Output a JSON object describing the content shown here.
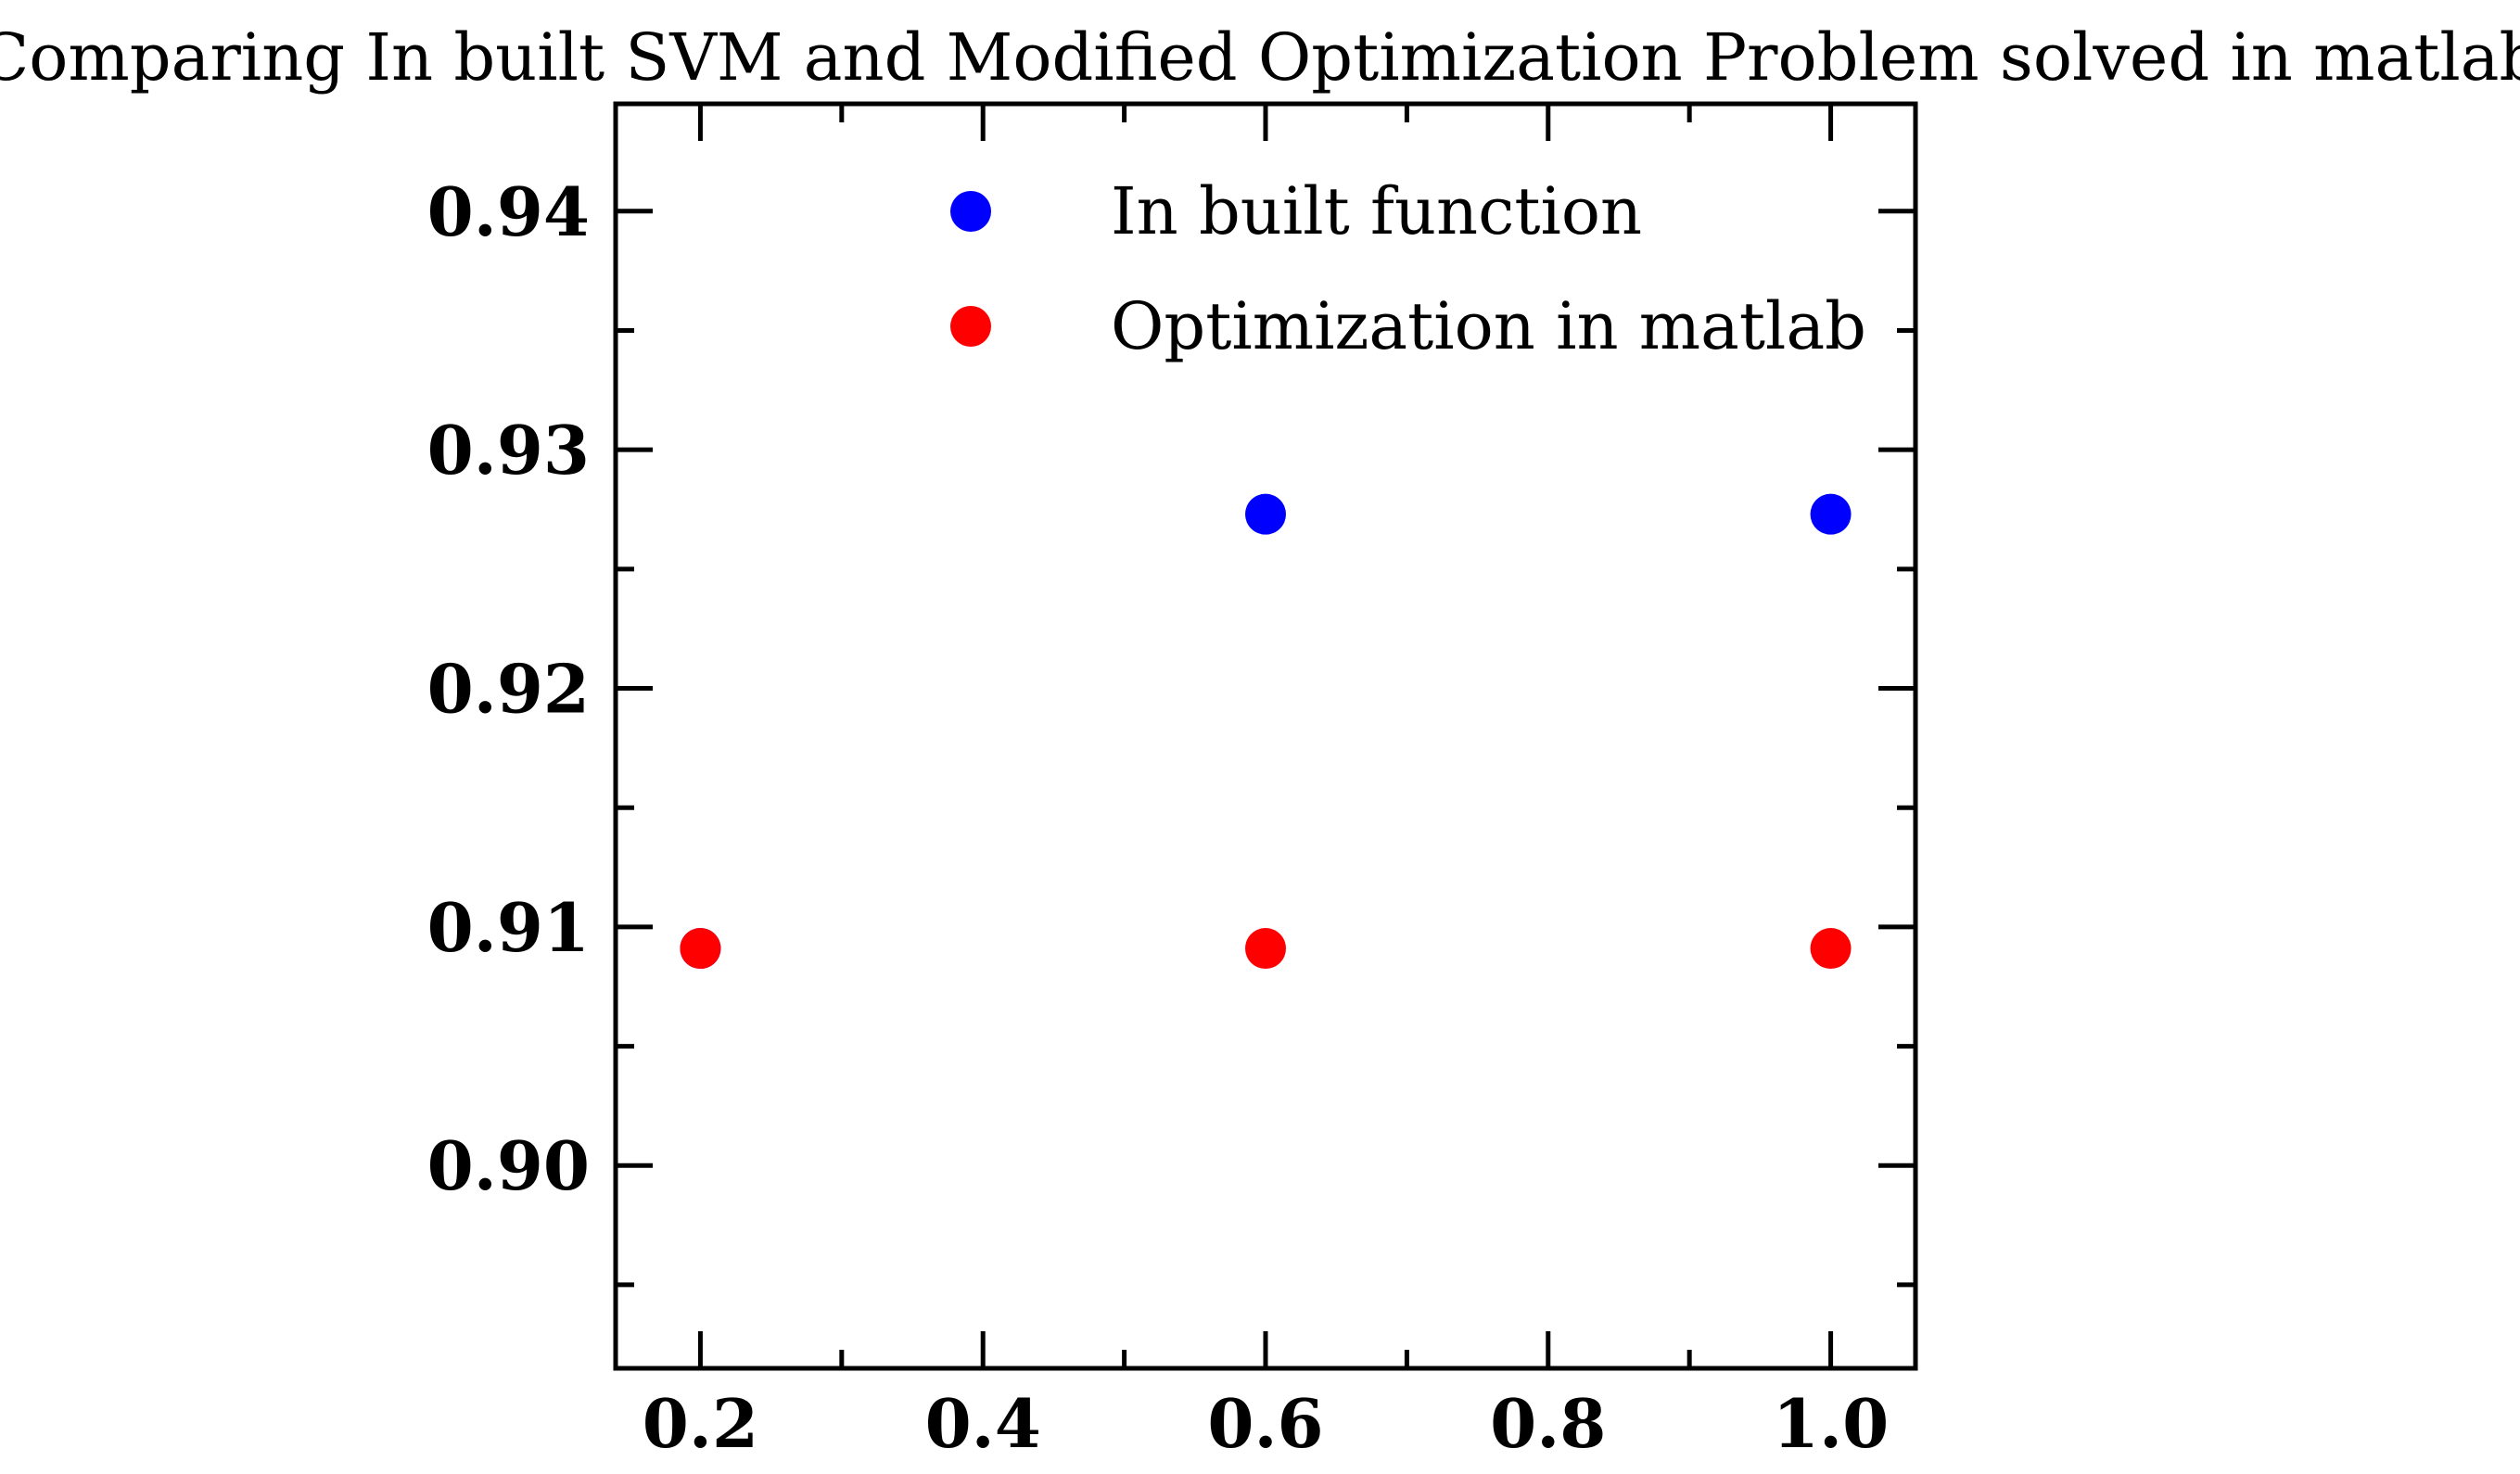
{
  "chart_data": {
    "type": "scatter",
    "title": "Comparing In built SVM and Modified Optimization Problem solved in matlab",
    "xlabel": "",
    "ylabel": "",
    "xlim": [
      0.14,
      1.06
    ],
    "ylim": [
      0.8915,
      0.9445
    ],
    "x_ticks_major": [
      "0.2",
      "0.4",
      "0.6",
      "0.8",
      "1.0"
    ],
    "y_ticks_major": [
      "0.90",
      "0.91",
      "0.92",
      "0.93",
      "0.94"
    ],
    "x_minor_step": 0.1,
    "y_minor_step": 0.005,
    "grid": false,
    "legend_position": "top-center",
    "series": [
      {
        "name": "In built function",
        "color": "#0000ff",
        "x": [
          0.2,
          0.6,
          1.0
        ],
        "y": [
          0.9091,
          0.9273,
          0.9273
        ]
      },
      {
        "name": "Optimization in matlab",
        "color": "#ff0000",
        "x": [
          0.2,
          0.6,
          1.0
        ],
        "y": [
          0.9091,
          0.9091,
          0.9091
        ]
      }
    ]
  }
}
